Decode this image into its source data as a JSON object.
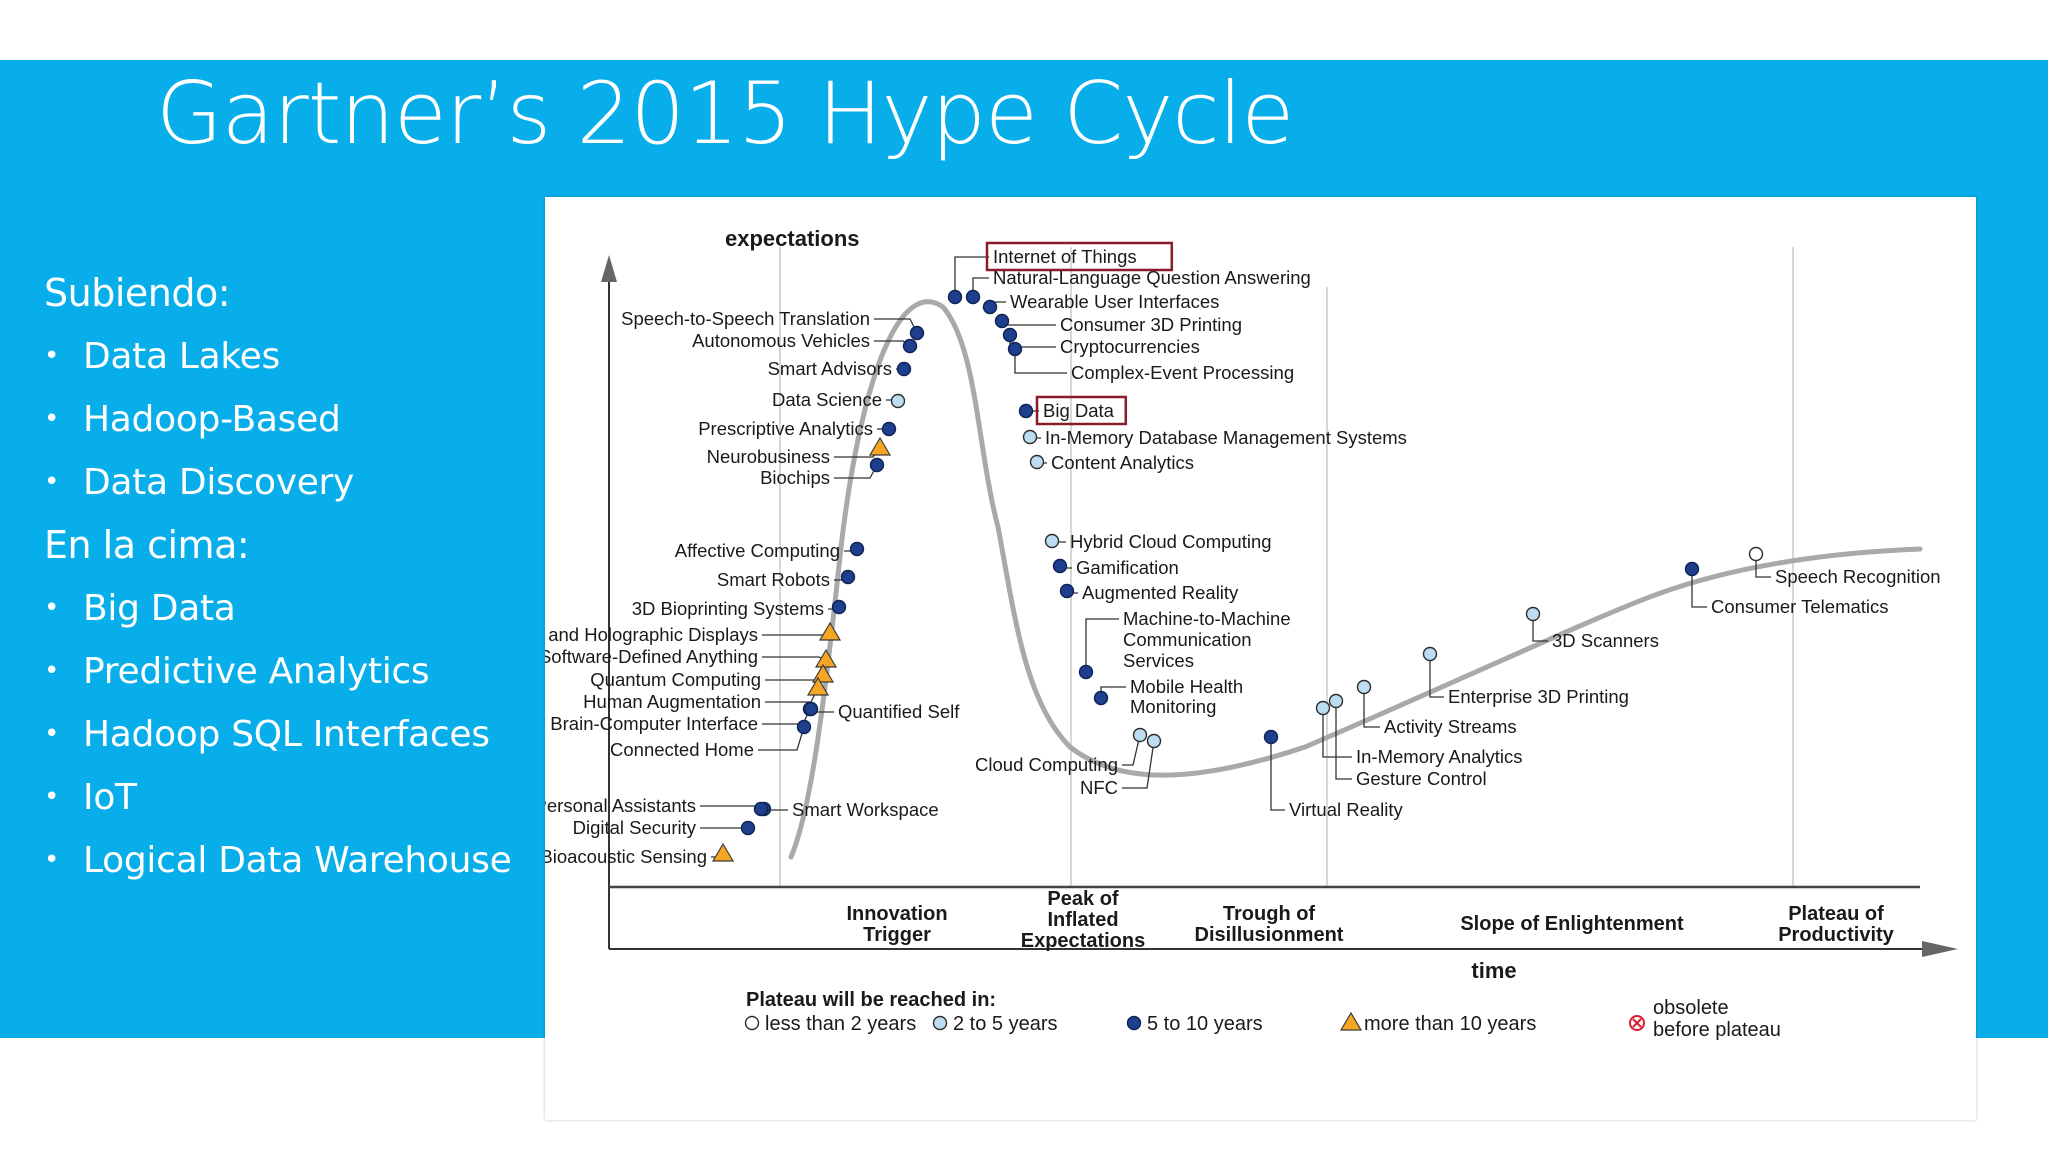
{
  "slide": {
    "title": "Gartner’s 2015 Hype Cycle",
    "colors": {
      "band": "#07aeea",
      "text": "#ffffff"
    }
  },
  "sidebar": {
    "rising_heading": "Subiendo:",
    "rising_items": [
      "Data Lakes",
      "Hadoop-Based",
      "Data Discovery"
    ],
    "peak_heading": "En la cima:",
    "peak_items": [
      "Big Data",
      "Predictive Analytics",
      "Hadoop SQL Interfaces",
      "IoT",
      "Logical Data Warehouse"
    ]
  },
  "diagram": {
    "y_axis_label": "expectations",
    "x_axis_label": "time",
    "phases": [
      "Innovation\nTrigger",
      "Peak of\nInflated\nExpectations",
      "Trough of\nDisillusionment",
      "Slope of Enlightenment",
      "Plateau of\nProductivity"
    ],
    "legend": {
      "title": "Plateau will be reached in:",
      "items": [
        {
          "key": "lt2",
          "label": "less than 2 years",
          "symbol": "hollow-circle-icon"
        },
        {
          "key": "2to5",
          "label": "2 to 5 years",
          "symbol": "light-blue-circle-icon"
        },
        {
          "key": "5to10",
          "label": "5 to 10 years",
          "symbol": "dark-blue-circle-icon"
        },
        {
          "key": "gt10",
          "label": "more than 10 years",
          "symbol": "orange-triangle-icon"
        },
        {
          "key": "obs",
          "label": "obsolete\nbefore plateau",
          "symbol": "red-cross-circle-icon"
        }
      ]
    },
    "colors": {
      "curve": "#a9a9a9",
      "dark": "#1d3f8e",
      "light": "#bcdcf2",
      "triangle": "#f5a623",
      "highlight": "#8b1a2b",
      "grid": "#d8d8d8",
      "obsolete": "#d6202f"
    },
    "technologies": [
      {
        "label": "Internet of Things",
        "status": "5to10",
        "highlighted": true
      },
      {
        "label": "Natural-Language Question Answering",
        "status": "5to10"
      },
      {
        "label": "Wearable User Interfaces",
        "status": "5to10"
      },
      {
        "label": "Consumer 3D Printing",
        "status": "5to10"
      },
      {
        "label": "Cryptocurrencies",
        "status": "5to10"
      },
      {
        "label": "Complex-Event Processing",
        "status": "5to10"
      },
      {
        "label": "Big Data",
        "status": "5to10",
        "highlighted": true
      },
      {
        "label": "In-Memory Database Management Systems",
        "status": "2to5"
      },
      {
        "label": "Content Analytics",
        "status": "2to5"
      },
      {
        "label": "Speech-to-Speech Translation",
        "status": "5to10"
      },
      {
        "label": "Autonomous Vehicles",
        "status": "5to10"
      },
      {
        "label": "Smart Advisors",
        "status": "5to10"
      },
      {
        "label": "Data Science",
        "status": "2to5"
      },
      {
        "label": "Prescriptive Analytics",
        "status": "5to10"
      },
      {
        "label": "Neurobusiness",
        "status": "gt10"
      },
      {
        "label": "Biochips",
        "status": "5to10"
      },
      {
        "label": "Affective Computing",
        "status": "5to10"
      },
      {
        "label": "Smart Robots",
        "status": "5to10"
      },
      {
        "label": "3D Bioprinting Systems",
        "status": "5to10"
      },
      {
        "label": "Volumetric and Holographic Displays",
        "status": "gt10"
      },
      {
        "label": "Software-Defined Anything",
        "status": "gt10"
      },
      {
        "label": "Quantum Computing",
        "status": "gt10"
      },
      {
        "label": "Human Augmentation",
        "status": "gt10"
      },
      {
        "label": "Brain-Computer Interface",
        "status": "5to10"
      },
      {
        "label": "Quantified Self",
        "status": "5to10"
      },
      {
        "label": "Connected Home",
        "status": "5to10"
      },
      {
        "label": "Virtual Personal Assistants",
        "status": "5to10"
      },
      {
        "label": "Smart Workspace",
        "status": "5to10"
      },
      {
        "label": "Digital Security",
        "status": "5to10"
      },
      {
        "label": "Bioacoustic Sensing",
        "status": "gt10"
      },
      {
        "label": "Hybrid Cloud Computing",
        "status": "2to5"
      },
      {
        "label": "Gamification",
        "status": "5to10"
      },
      {
        "label": "Augmented Reality",
        "status": "5to10"
      },
      {
        "label": "Machine-to-Machine\nCommunication\nServices",
        "status": "5to10"
      },
      {
        "label": "Mobile Health\nMonitoring",
        "status": "5to10"
      },
      {
        "label": "Cloud Computing",
        "status": "2to5"
      },
      {
        "label": "NFC",
        "status": "2to5"
      },
      {
        "label": "Virtual Reality",
        "status": "5to10"
      },
      {
        "label": "In-Memory Analytics",
        "status": "2to5"
      },
      {
        "label": "Gesture Control",
        "status": "2to5"
      },
      {
        "label": "Activity Streams",
        "status": "2to5"
      },
      {
        "label": "Enterprise 3D Printing",
        "status": "2to5"
      },
      {
        "label": "3D Scanners",
        "status": "2to5"
      },
      {
        "label": "Consumer Telematics",
        "status": "5to10"
      },
      {
        "label": "Speech Recognition",
        "status": "lt2"
      }
    ]
  }
}
